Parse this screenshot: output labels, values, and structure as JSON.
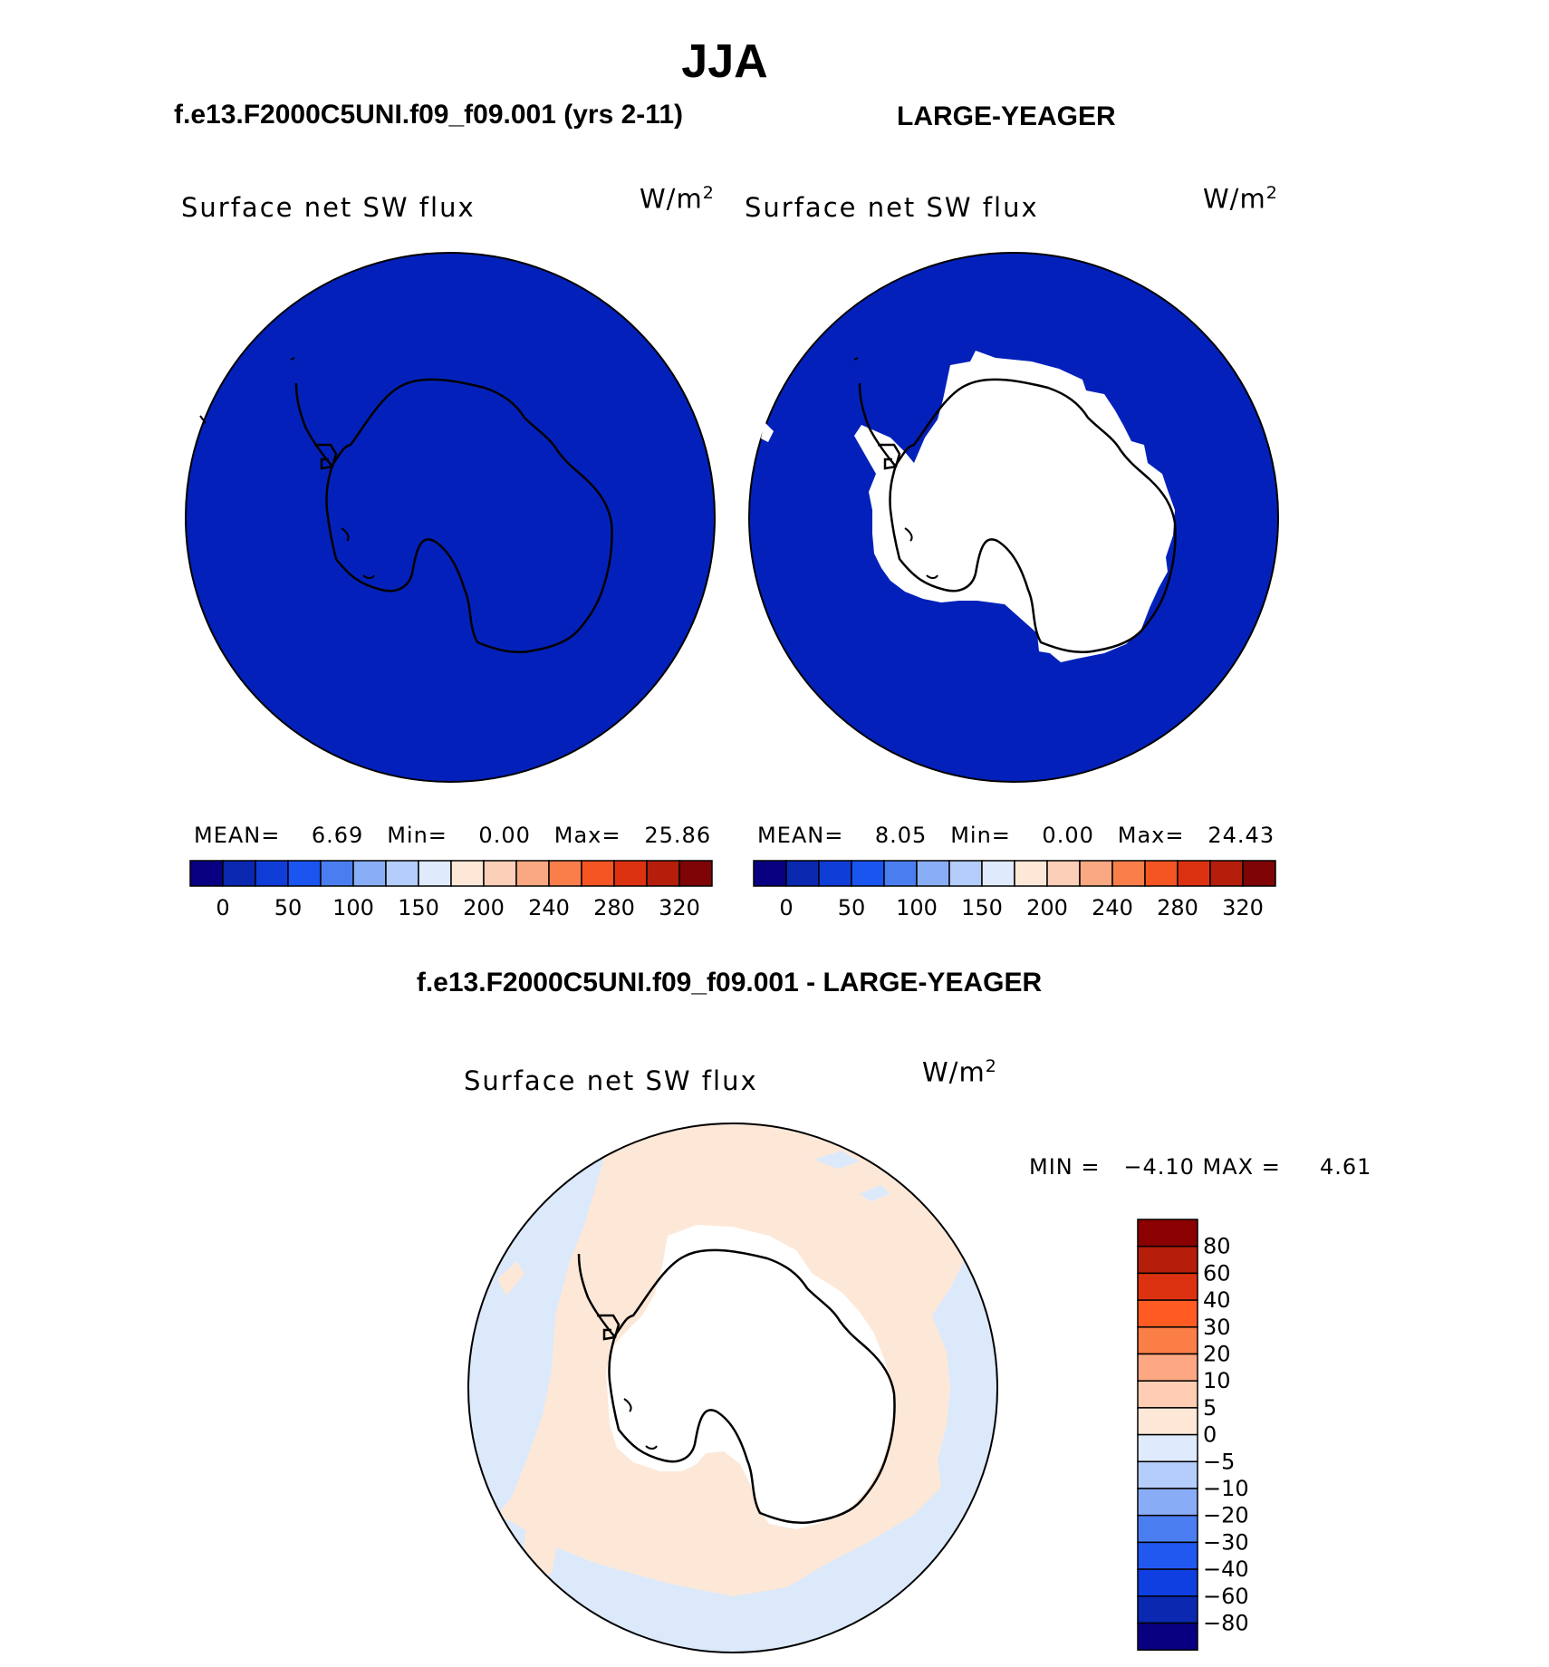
{
  "title": "JJA",
  "panels": {
    "left": {
      "case": "f.e13.F2000C5UNI.f09_f09.001 (yrs 2-11)",
      "variable": "Surface net SW flux",
      "units": "W/m",
      "units_exp": "2",
      "mean_label": "MEAN=",
      "mean_value": "6.69",
      "min_label": "Min=",
      "min_value": "0.00",
      "max_label": "Max=",
      "max_value": "25.86"
    },
    "right": {
      "case": "LARGE-YEAGER",
      "variable": "Surface net SW flux",
      "units": "W/m",
      "units_exp": "2",
      "mean_label": "MEAN=",
      "mean_value": "8.05",
      "min_label": "Min=",
      "min_value": "0.00",
      "max_label": "Max=",
      "max_value": "24.43"
    },
    "diff": {
      "title": "f.e13.F2000C5UNI.f09_f09.001 - LARGE-YEAGER",
      "variable": "Surface net SW flux",
      "units": "W/m",
      "units_exp": "2",
      "stats": "MIN =   −4.10 MAX =     4.61"
    }
  },
  "colorbar_abs": {
    "colors": [
      "#080080",
      "#0b28b0",
      "#0f3dd8",
      "#1a55f0",
      "#4a7ef0",
      "#8aaef5",
      "#b5cdfa",
      "#dfeafc",
      "#fde8d8",
      "#fccfb8",
      "#f9a882",
      "#f97e4a",
      "#f55523",
      "#dd3212",
      "#b51e0a",
      "#7f0405"
    ],
    "labels": [
      "0",
      "50",
      "100",
      "150",
      "200",
      "240",
      "280",
      "320"
    ]
  },
  "colorbar_diff": {
    "colors": [
      "#8b0000",
      "#b51e0a",
      "#dd3212",
      "#ff5b23",
      "#fb7e46",
      "#fda882",
      "#fecdb3",
      "#fde8d8",
      "#dfeafc",
      "#b5cdfa",
      "#88acf5",
      "#4a7ef0",
      "#2058f0",
      "#0f3fe0",
      "#0b28b0",
      "#080080"
    ],
    "labels": [
      "80",
      "60",
      "40",
      "30",
      "20",
      "10",
      "5",
      "0",
      "−5",
      "−10",
      "−20",
      "−30",
      "−40",
      "−60",
      "−80"
    ]
  },
  "map_colors": {
    "ocean_abs": "#0321ba",
    "land_mask": "#ffffff",
    "diff_pos": "#fde8d8",
    "diff_neg": "#dbe9fb"
  }
}
